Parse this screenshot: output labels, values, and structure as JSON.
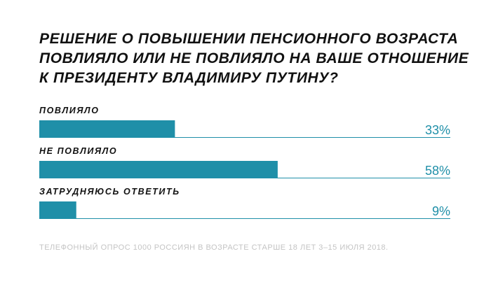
{
  "title_lines": [
    "РЕШЕНИЕ О ПОВЫШЕНИИ ПЕНСИОННОГО ВОЗРАСТА",
    "ПОВЛИЯЛО ИЛИ НЕ ПОВЛИЯЛО НА ВАШЕ ОТНОШЕНИЕ",
    "К ПРЕЗИДЕНТУ ВЛАДИМИРУ ПУТИНУ?"
  ],
  "footnote": "ТЕЛЕФОННЫЙ ОПРОС 1000 РОССИЯН В ВОЗРАСТЕ СТАРШЕ 18 ЛЕТ 3–15 ИЮЛЯ 2018.",
  "colors": {
    "bar": "#1f8fa8",
    "baseline": "#1f8fa8",
    "value_text": "#1f8fa8",
    "footnote": "#c4c4c4"
  },
  "chart_data": {
    "type": "bar",
    "orientation": "horizontal",
    "title": "РЕШЕНИЕ О ПОВЫШЕНИИ ПЕНСИОННОГО ВОЗРАСТА ПОВЛИЯЛО ИЛИ НЕ ПОВЛИЯЛО НА ВАШЕ ОТНОШЕНИЕ К ПРЕЗИДЕНТУ ВЛАДИМИРУ ПУТИНУ?",
    "categories": [
      "ПОВЛИЯЛО",
      "НЕ ПОВЛИЯЛО",
      "ЗАТРУДНЯЮСЬ ОТВЕТИТЬ"
    ],
    "values": [
      33,
      58,
      9
    ],
    "value_labels": [
      "33%",
      "58%",
      "9%"
    ],
    "xlim": [
      0,
      100
    ],
    "grid": false,
    "legend": "none"
  }
}
